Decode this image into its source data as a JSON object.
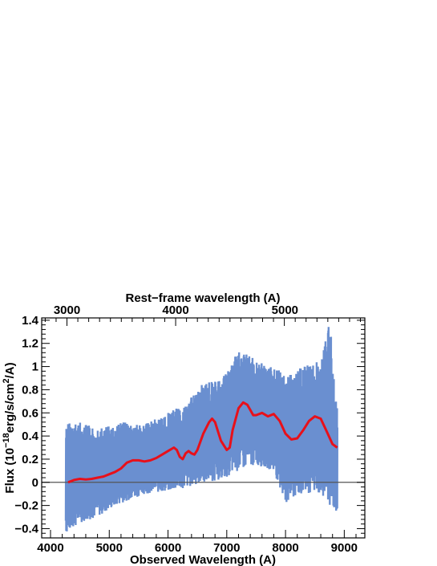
{
  "chart_data": {
    "type": "line",
    "xlabel": "Observed Wavelength (A)",
    "ylabel_main": "Flux (10",
    "ylabel_exp_minus18": "−18",
    "ylabel_mid": "erg/s/cm",
    "ylabel_exp_2": "2",
    "ylabel_end": "/A)",
    "top_xlabel": "Rest−frame wavelength (A)",
    "xlim": [
      3850,
      9350
    ],
    "ylim": [
      -0.48,
      1.42
    ],
    "xticks": [
      4000,
      5000,
      6000,
      7000,
      8000,
      9000
    ],
    "xtick_labels": [
      "4000",
      "5000",
      "6000",
      "7000",
      "8000",
      "9000"
    ],
    "yticks": [
      -0.4,
      -0.2,
      0,
      0.2,
      0.4,
      0.6,
      0.8,
      1,
      1.2,
      1.4
    ],
    "ytick_labels": [
      "−0.4",
      "−0.2",
      "0",
      "0.2",
      "0.4",
      "0.6",
      "0.8",
      "1",
      "1.2",
      "1.4"
    ],
    "top_ticks_observed": [
      4280,
      6130,
      7990,
      9850
    ],
    "top_tick_labels": [
      "3000",
      "4000",
      "5000"
    ],
    "zero_line": 0,
    "series": [
      {
        "color": "#6a8fd0",
        "style": "noisy-spectrum",
        "x_range": [
          4260,
          8880
        ],
        "envelope": [
          [
            4260,
            -0.45,
            0.52
          ],
          [
            4500,
            -0.35,
            0.52
          ],
          [
            4800,
            -0.3,
            0.46
          ],
          [
            5200,
            -0.18,
            0.52
          ],
          [
            5600,
            -0.1,
            0.5
          ],
          [
            6000,
            -0.08,
            0.6
          ],
          [
            6300,
            -0.05,
            0.68
          ],
          [
            6600,
            0.0,
            0.86
          ],
          [
            6900,
            0.02,
            0.88
          ],
          [
            7200,
            0.1,
            1.14
          ],
          [
            7500,
            0.15,
            1.06
          ],
          [
            7800,
            0.1,
            0.98
          ],
          [
            8000,
            -0.2,
            0.95
          ],
          [
            8300,
            -0.1,
            1.0
          ],
          [
            8600,
            -0.1,
            1.05
          ],
          [
            8750,
            -0.2,
            1.4
          ],
          [
            8880,
            -0.28,
            0.62
          ]
        ]
      },
      {
        "color": "#e8101a",
        "style": "smoothed",
        "points": [
          [
            4300,
            0.0
          ],
          [
            4400,
            0.02
          ],
          [
            4500,
            0.03
          ],
          [
            4600,
            0.025
          ],
          [
            4700,
            0.03
          ],
          [
            4800,
            0.04
          ],
          [
            4900,
            0.05
          ],
          [
            5000,
            0.07
          ],
          [
            5100,
            0.09
          ],
          [
            5200,
            0.12
          ],
          [
            5300,
            0.17
          ],
          [
            5400,
            0.19
          ],
          [
            5500,
            0.19
          ],
          [
            5600,
            0.18
          ],
          [
            5700,
            0.19
          ],
          [
            5800,
            0.21
          ],
          [
            5900,
            0.24
          ],
          [
            6000,
            0.27
          ],
          [
            6100,
            0.3
          ],
          [
            6150,
            0.28
          ],
          [
            6200,
            0.22
          ],
          [
            6250,
            0.2
          ],
          [
            6300,
            0.25
          ],
          [
            6350,
            0.27
          ],
          [
            6400,
            0.25
          ],
          [
            6450,
            0.24
          ],
          [
            6500,
            0.28
          ],
          [
            6600,
            0.42
          ],
          [
            6700,
            0.52
          ],
          [
            6750,
            0.55
          ],
          [
            6800,
            0.52
          ],
          [
            6900,
            0.36
          ],
          [
            7000,
            0.28
          ],
          [
            7050,
            0.3
          ],
          [
            7100,
            0.45
          ],
          [
            7200,
            0.64
          ],
          [
            7280,
            0.69
          ],
          [
            7350,
            0.67
          ],
          [
            7450,
            0.58
          ],
          [
            7500,
            0.58
          ],
          [
            7600,
            0.6
          ],
          [
            7700,
            0.57
          ],
          [
            7800,
            0.59
          ],
          [
            7900,
            0.53
          ],
          [
            8000,
            0.42
          ],
          [
            8100,
            0.37
          ],
          [
            8200,
            0.38
          ],
          [
            8300,
            0.45
          ],
          [
            8400,
            0.53
          ],
          [
            8500,
            0.57
          ],
          [
            8600,
            0.55
          ],
          [
            8700,
            0.44
          ],
          [
            8800,
            0.33
          ],
          [
            8880,
            0.3
          ]
        ]
      }
    ]
  }
}
